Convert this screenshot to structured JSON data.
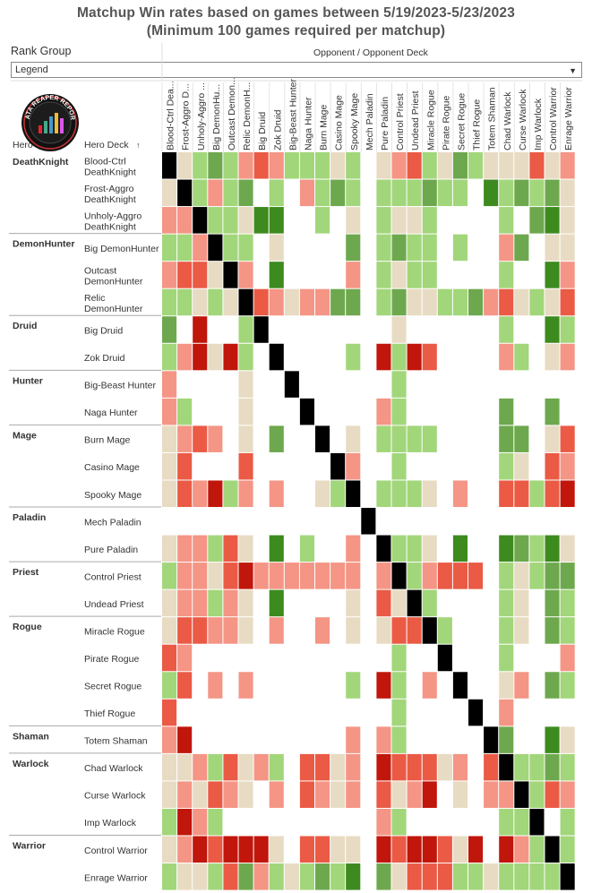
{
  "title_line1": "Matchup Win rates based on games between 5/19/2023-5/23/2023",
  "title_line2": "(Minimum 100 games required per matchup)",
  "filters": {
    "rank_group_label": "Rank Group",
    "rank_group_value": "Legend",
    "opponent_header": "Opponent / Opponent Deck"
  },
  "logo_text": "DATA REAPER REPORT",
  "headers": {
    "hero": "Hero",
    "hero_deck": "Hero Deck"
  },
  "sort_icon": "sort-ascending-icon",
  "colors": {
    "very_high": "#3d8a1e",
    "high": "#6ea84e",
    "good": "#a2d67a",
    "even": "#e8dbc3",
    "bad": "#f49585",
    "low": "#ea5a45",
    "very_low": "#c0160b",
    "mirror": "#000000",
    "none": "#ffffff"
  },
  "chart_data": {
    "type": "heatmap",
    "title": "Matchup Win rates based on games between 5/19/2023-5/23/2023",
    "subtitle": "(Minimum 100 games required per matchup)",
    "xlabel": "Opponent / Opponent Deck",
    "ylabel": "Hero Deck",
    "legend": [
      "VH=very_high",
      "H=high",
      "G=good",
      "E=even",
      "B=bad",
      "L=low",
      "V=very_low",
      "M=mirror",
      "_=none"
    ],
    "hero_groups": [
      {
        "hero": "DeathKnight",
        "decks": [
          0,
          1,
          2
        ]
      },
      {
        "hero": "DemonHunter",
        "decks": [
          3,
          4,
          5
        ]
      },
      {
        "hero": "Druid",
        "decks": [
          6,
          7
        ]
      },
      {
        "hero": "Hunter",
        "decks": [
          8,
          9
        ]
      },
      {
        "hero": "Mage",
        "decks": [
          10,
          11,
          12
        ]
      },
      {
        "hero": "Paladin",
        "decks": [
          13,
          14
        ]
      },
      {
        "hero": "Priest",
        "decks": [
          15,
          16
        ]
      },
      {
        "hero": "Rogue",
        "decks": [
          17,
          18,
          19,
          20
        ]
      },
      {
        "hero": "Shaman",
        "decks": [
          21
        ]
      },
      {
        "hero": "Warlock",
        "decks": [
          22,
          23,
          24
        ]
      },
      {
        "hero": "Warrior",
        "decks": [
          25,
          26
        ]
      }
    ],
    "row_labels": [
      [
        "Blood-Ctrl",
        "DeathKnight"
      ],
      [
        "Frost-Aggro",
        "DeathKnight"
      ],
      [
        "Unholy-Aggro",
        "DeathKnight"
      ],
      [
        "Big DemonHunter"
      ],
      [
        "Outcast",
        "DemonHunter"
      ],
      [
        "Relic",
        "DemonHunter"
      ],
      [
        "Big Druid"
      ],
      [
        "Zok Druid"
      ],
      [
        "Big-Beast Hunter"
      ],
      [
        "Naga Hunter"
      ],
      [
        "Burn Mage"
      ],
      [
        "Casino Mage"
      ],
      [
        "Spooky Mage"
      ],
      [
        "Mech Paladin"
      ],
      [
        "Pure Paladin"
      ],
      [
        "Control Priest"
      ],
      [
        "Undead Priest"
      ],
      [
        "Miracle Rogue"
      ],
      [
        "Pirate Rogue"
      ],
      [
        "Secret Rogue"
      ],
      [
        "Thief Rogue"
      ],
      [
        "Totem Shaman"
      ],
      [
        "Chad Warlock"
      ],
      [
        "Curse Warlock"
      ],
      [
        "Imp Warlock"
      ],
      [
        "Control Warrior"
      ],
      [
        "Enrage Warrior"
      ]
    ],
    "col_labels": [
      "Blood-Ctrl Dea...",
      "Frost-Aggro D...",
      "Unholy-Aggro ...",
      "Big DemonHu...",
      "Outcast Demon...",
      "Relic DemonH...",
      "Big Druid",
      "Zok Druid",
      "Big-Beast Hunter",
      "Naga Hunter",
      "Burn Mage",
      "Casino Mage",
      "Spooky Mage",
      "Mech Paladin",
      "Pure Paladin",
      "Control Priest",
      "Undead Priest",
      "Miracle Rogue",
      "Pirate Rogue",
      "Secret Rogue",
      "Thief Rogue",
      "Totem Shaman",
      "Chad Warlock",
      "Curse Warlock",
      "Imp Warlock",
      "Control Warrior",
      "Enrage Warrior"
    ],
    "cells": [
      "M E G H G B L B G G G E G _ E B L G E H G E E E L E B",
      "E M G B G H _ G _ B G H G _ G G G H G G _ VH G H G H E",
      "B B M G G E VH VH _ _ G _ E _ G E E G _ _ _ _ G _ H VH E",
      "G G B M G G _ E _ _ _ _ H _ G H G G _ G _ _ B H _ E E",
      "B L L E M B _ VH _ _ _ _ B _ G E G G _ _ _ _ G _ _ VH B",
      "G G E G E M L B E B B H H _ G H E E G G H B L E G E L",
      "H _ V _ _ G M _ _ _ _ _ _ _ _ E _ _ _ _ _ _ G _ _ VH G",
      "G B V E V G _ M _ _ _ _ G _ V G V L _ _ _ _ B G _ E B",
      "B _ _ _ _ E _ _ M _ _ _ _ _ _ G _ _ _ _ _ _ _ _ _ _ _",
      "B G _ _ _ E _ _ _ M _ _ _ _ B G _ _ _ _ _ _ H _ _ H _",
      "E B L B _ E _ H _ _ M _ E _ G G G G _ _ _ _ H H _ E L",
      "E L _ _ _ L _ _ _ _ _ M B _ _ G _ _ _ _ _ _ G E _ L B",
      "E L B V G B _ B _ _ E G M _ G G G E _ B _ _ L L G L V",
      "_ _ _ _ _ _ _ _ _ _ _ _ _ M _ _ _ _ _ _ _ _ _ _ _ _ _",
      "E B B G L E _ VH _ G _ _ B _ M G G E _ VH _ _ VH H G VH E",
      "G B B E L V B B B B B B B _ B M G B L L L _ G E G H H",
      "E B B G B E _ VH _ _ _ _ E _ L E M G _ _ _ _ G E _ H G",
      "E L L B B E _ B _ _ B _ E _ E L L M G _ _ _ G E _ H G",
      "L B _ _ _ _ _ _ _ _ _ _ _ _ _ G _ _ M _ _ _ G _ _ _ B",
      "G L _ B _ B _ _ _ _ _ _ G _ V G _ B _ M _ _ E B _ H G",
      "L _ _ _ _ _ _ _ _ _ _ _ _ _ _ G _ _ _ _ M _ B _ _ _ _",
      "B V _ _ _ _ _ _ _ _ _ _ B _ B G _ _ _ _ _ M H _ _ VH E",
      "E E B G L E B G _ L L E B _ V L L L E B _ L M G G H G",
      "E B E L B E _ B _ L B E B _ L E B V _ E _ B B M G L B",
      "G V B G _ _ _ _ _ _ _ _ _ _ B G _ _ _ _ _ _ G G M _ G",
      "E B V L V V V E _ L L E E _ V L V V L E V _ V B G M G",
      "G E E G L H B G E G H G VH _ H E L L L G G E G G G G M"
    ]
  }
}
